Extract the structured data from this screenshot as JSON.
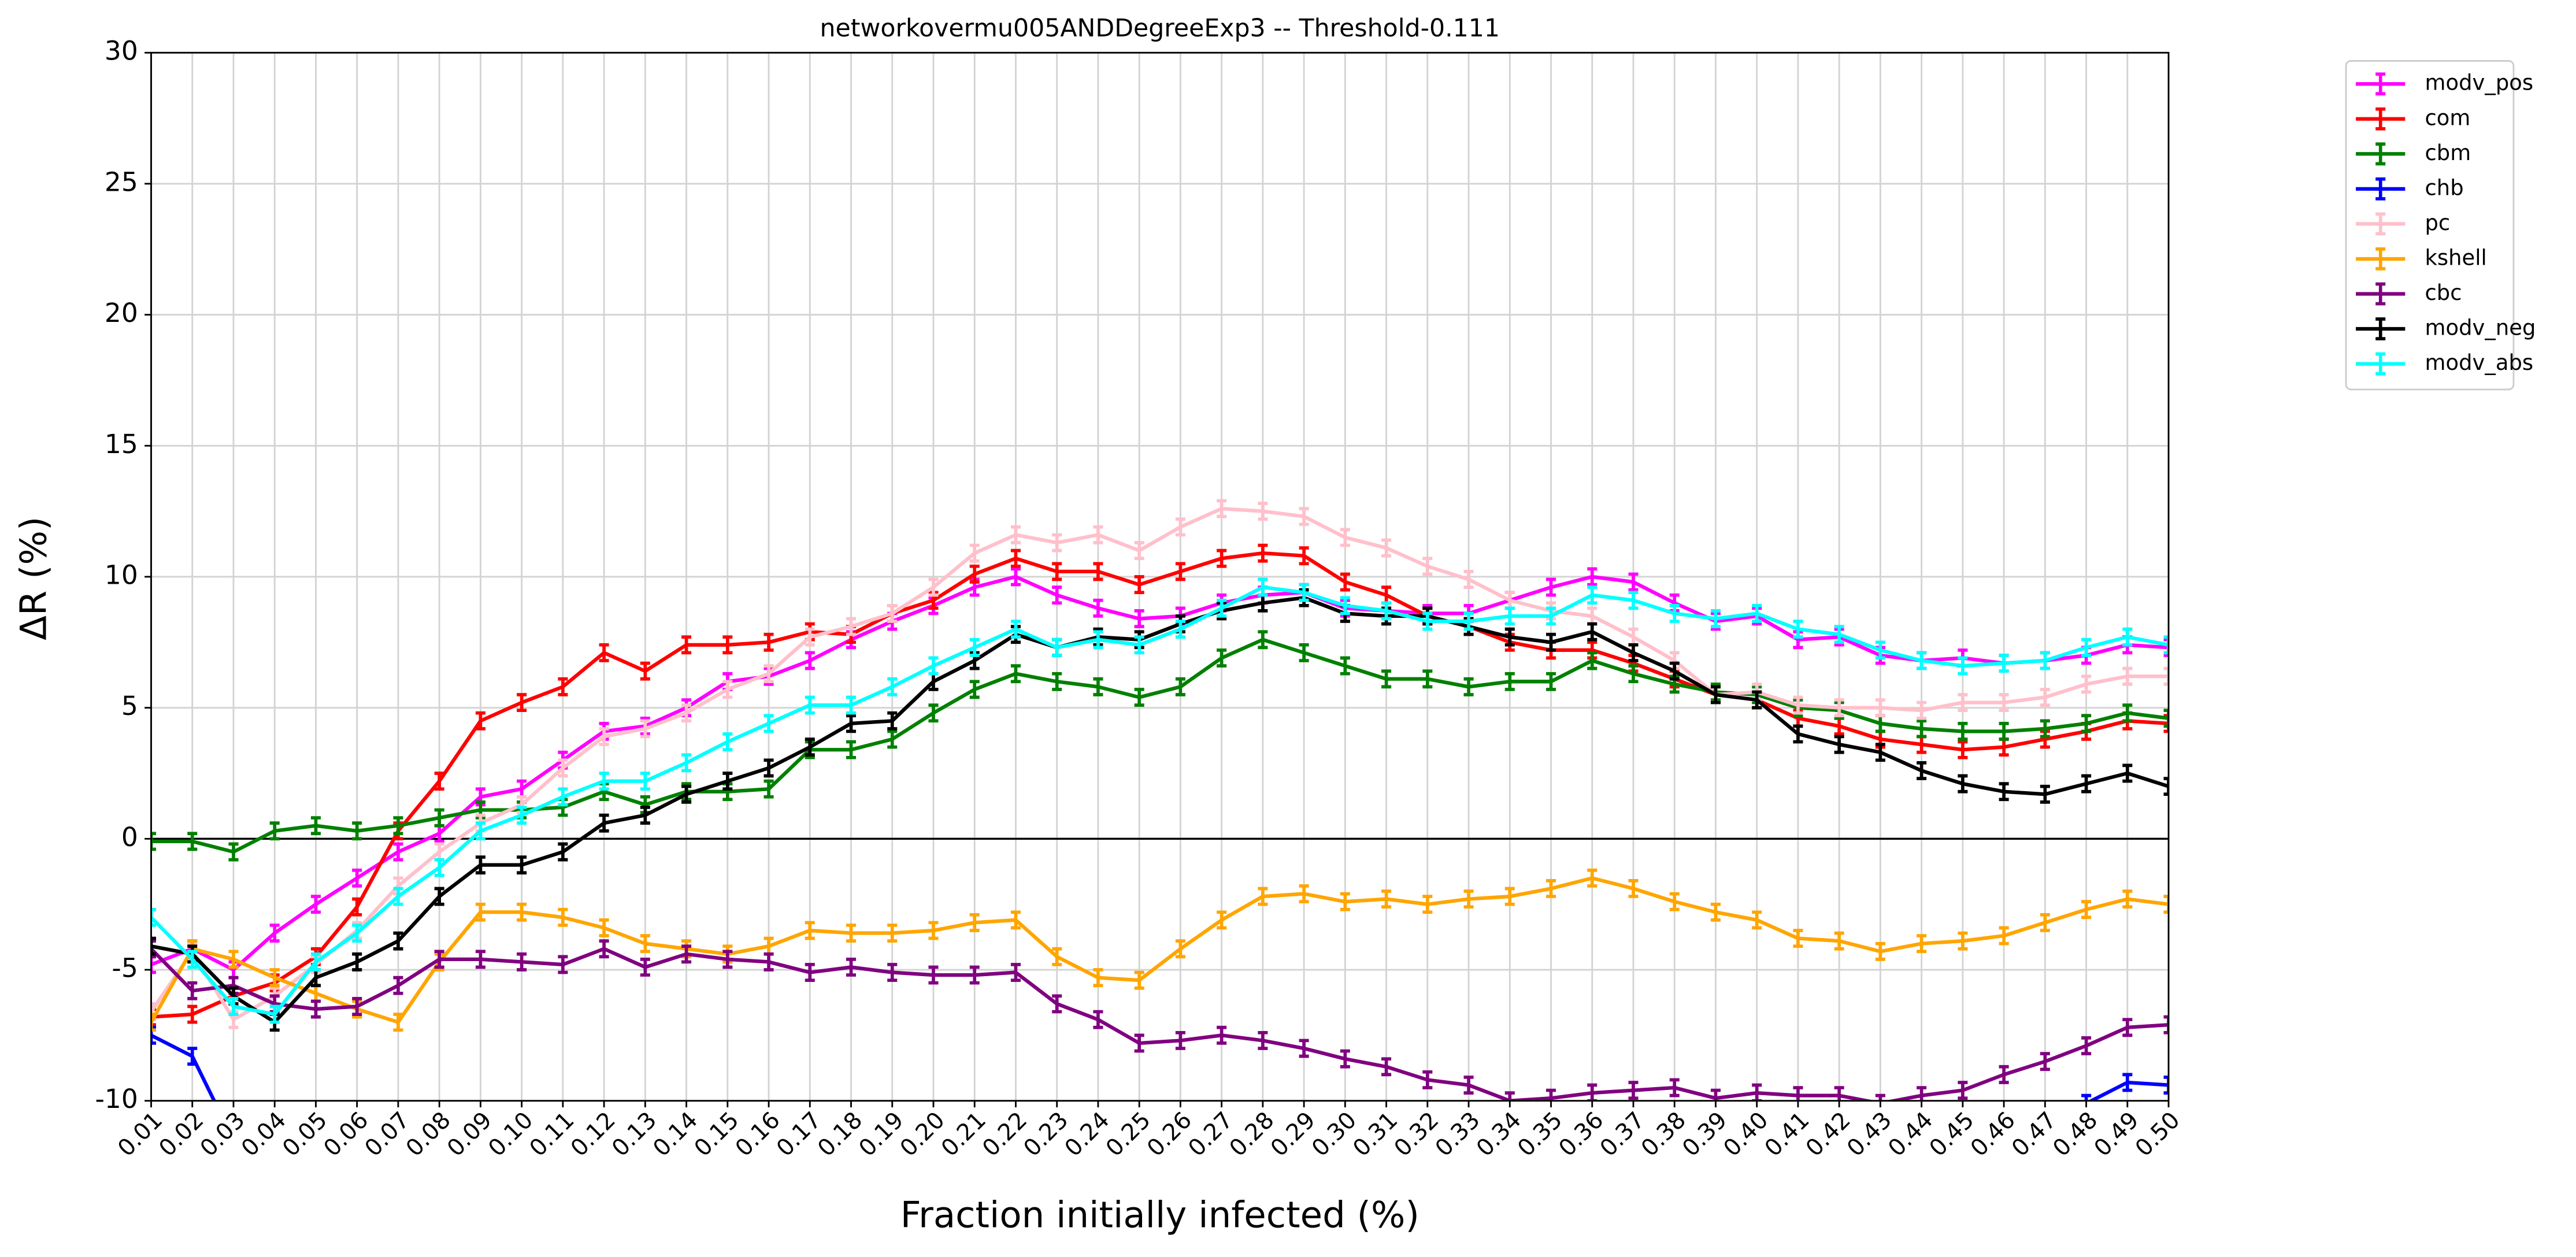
{
  "chart_data": {
    "type": "line",
    "title": "networkovermu005ANDDegreeExp3 -- Threshold-0.111",
    "x_label": "Fraction initially infected (%)",
    "y_label": "ΔR (%)",
    "categories": [
      "0.01",
      "0.02",
      "0.03",
      "0.04",
      "0.05",
      "0.06",
      "0.07",
      "0.08",
      "0.09",
      "0.10",
      "0.11",
      "0.12",
      "0.13",
      "0.14",
      "0.15",
      "0.16",
      "0.17",
      "0.18",
      "0.19",
      "0.20",
      "0.21",
      "0.22",
      "0.23",
      "0.24",
      "0.25",
      "0.26",
      "0.27",
      "0.28",
      "0.29",
      "0.30",
      "0.31",
      "0.32",
      "0.33",
      "0.34",
      "0.35",
      "0.36",
      "0.37",
      "0.38",
      "0.39",
      "0.40",
      "0.41",
      "0.42",
      "0.43",
      "0.44",
      "0.45",
      "0.46",
      "0.47",
      "0.48",
      "0.49",
      "0.50"
    ],
    "ylim": [
      -10,
      30
    ],
    "yticks": [
      -10,
      -5,
      0,
      5,
      10,
      15,
      20,
      25,
      30
    ],
    "grid": true,
    "hline": 0,
    "yerr": 0.3,
    "legend": "outside-right",
    "series": [
      {
        "name": "modv_pos",
        "color": "#ff00ff",
        "values": [
          -4.8,
          -4.2,
          -5.0,
          -3.6,
          -2.5,
          -1.5,
          -0.5,
          0.2,
          1.6,
          1.9,
          3.0,
          4.1,
          4.3,
          5.0,
          6.0,
          6.2,
          6.8,
          7.6,
          8.3,
          8.9,
          9.6,
          10.0,
          9.3,
          8.8,
          8.4,
          8.5,
          9.0,
          9.3,
          9.4,
          8.8,
          8.7,
          8.6,
          8.6,
          9.1,
          9.6,
          10.0,
          9.8,
          9.0,
          8.3,
          8.5,
          7.6,
          7.7,
          7.0,
          6.8,
          6.9,
          6.7,
          6.8,
          7.0,
          7.4,
          7.3
        ]
      },
      {
        "name": "com",
        "color": "#ff0000",
        "values": [
          -6.8,
          -6.7,
          -6.0,
          -5.5,
          -4.5,
          -2.6,
          0.3,
          2.2,
          4.5,
          5.2,
          5.8,
          7.1,
          6.4,
          7.4,
          7.4,
          7.5,
          7.9,
          7.8,
          8.6,
          9.1,
          10.1,
          10.7,
          10.2,
          10.2,
          9.7,
          10.2,
          10.7,
          10.9,
          10.8,
          9.8,
          9.3,
          8.5,
          8.1,
          7.5,
          7.2,
          7.2,
          6.7,
          6.1,
          5.5,
          5.3,
          4.6,
          4.3,
          3.8,
          3.6,
          3.4,
          3.5,
          3.8,
          4.1,
          4.5,
          4.4
        ]
      },
      {
        "name": "cbm",
        "color": "#008000",
        "values": [
          -0.1,
          -0.1,
          -0.5,
          0.3,
          0.5,
          0.3,
          0.5,
          0.8,
          1.1,
          1.1,
          1.2,
          1.8,
          1.3,
          1.8,
          1.8,
          1.9,
          3.4,
          3.4,
          3.8,
          4.8,
          5.7,
          6.3,
          6.0,
          5.8,
          5.4,
          5.8,
          6.9,
          7.6,
          7.1,
          6.6,
          6.1,
          6.1,
          5.8,
          6.0,
          6.0,
          6.8,
          6.3,
          5.9,
          5.6,
          5.5,
          5.0,
          4.9,
          4.4,
          4.2,
          4.1,
          4.1,
          4.2,
          4.4,
          4.8,
          4.6
        ]
      },
      {
        "name": "chb",
        "color": "#0000ff",
        "values": [
          -7.5,
          -8.3,
          -11.5,
          null,
          null,
          null,
          null,
          null,
          null,
          null,
          null,
          null,
          null,
          null,
          null,
          null,
          null,
          null,
          null,
          null,
          null,
          null,
          null,
          null,
          null,
          null,
          null,
          null,
          null,
          null,
          null,
          null,
          null,
          null,
          null,
          null,
          null,
          null,
          null,
          null,
          null,
          null,
          null,
          null,
          null,
          null,
          -11.0,
          -10.1,
          -9.3,
          -9.4
        ]
      },
      {
        "name": "pc",
        "color": "#ffc0cb",
        "values": [
          -6.6,
          -4.3,
          -6.9,
          -6.0,
          -4.8,
          -3.5,
          -1.8,
          -0.5,
          0.6,
          1.3,
          2.7,
          3.9,
          4.2,
          4.8,
          5.7,
          6.3,
          7.7,
          8.1,
          8.6,
          9.6,
          10.9,
          11.6,
          11.3,
          11.6,
          11.0,
          11.9,
          12.6,
          12.5,
          12.3,
          11.5,
          11.1,
          10.4,
          9.9,
          9.1,
          8.7,
          8.5,
          7.7,
          6.8,
          5.5,
          5.6,
          5.1,
          5.0,
          5.0,
          4.9,
          5.2,
          5.2,
          5.4,
          5.9,
          6.2,
          6.2
        ]
      },
      {
        "name": "kshell",
        "color": "#ffa500",
        "values": [
          -7.0,
          -4.2,
          -4.6,
          -5.3,
          -5.9,
          -6.5,
          -7.0,
          -4.7,
          -2.8,
          -2.8,
          -3.0,
          -3.4,
          -4.0,
          -4.2,
          -4.4,
          -4.1,
          -3.5,
          -3.6,
          -3.6,
          -3.5,
          -3.2,
          -3.1,
          -4.5,
          -5.3,
          -5.4,
          -4.2,
          -3.1,
          -2.2,
          -2.1,
          -2.4,
          -2.3,
          -2.5,
          -2.3,
          -2.2,
          -1.9,
          -1.5,
          -1.9,
          -2.4,
          -2.8,
          -3.1,
          -3.8,
          -3.9,
          -4.3,
          -4.0,
          -3.9,
          -3.7,
          -3.2,
          -2.7,
          -2.3,
          -2.5
        ]
      },
      {
        "name": "cbc",
        "color": "#800080",
        "values": [
          -4.2,
          -5.8,
          -5.6,
          -6.3,
          -6.5,
          -6.4,
          -5.6,
          -4.6,
          -4.6,
          -4.7,
          -4.8,
          -4.2,
          -4.9,
          -4.4,
          -4.6,
          -4.7,
          -5.1,
          -4.9,
          -5.1,
          -5.2,
          -5.2,
          -5.1,
          -6.3,
          -6.9,
          -7.8,
          -7.7,
          -7.5,
          -7.7,
          -8.0,
          -8.4,
          -8.7,
          -9.2,
          -9.4,
          -10.0,
          -9.9,
          -9.7,
          -9.6,
          -9.5,
          -9.9,
          -9.7,
          -9.8,
          -9.8,
          -10.1,
          -9.8,
          -9.6,
          -9.0,
          -8.5,
          -7.9,
          -7.2,
          -7.1
        ]
      },
      {
        "name": "modv_neg",
        "color": "#000000",
        "values": [
          -4.1,
          -4.4,
          -6.0,
          -7.0,
          -5.3,
          -4.7,
          -3.9,
          -2.2,
          -1.0,
          -1.0,
          -0.5,
          0.6,
          0.9,
          1.7,
          2.2,
          2.7,
          3.5,
          4.4,
          4.5,
          6.0,
          6.8,
          7.8,
          7.3,
          7.7,
          7.6,
          8.2,
          8.7,
          9.0,
          9.2,
          8.6,
          8.5,
          8.5,
          8.1,
          7.7,
          7.5,
          7.9,
          7.1,
          6.4,
          5.5,
          5.3,
          4.0,
          3.6,
          3.3,
          2.6,
          2.1,
          1.8,
          1.7,
          2.1,
          2.5,
          2.0
        ]
      },
      {
        "name": "modv_abs",
        "color": "#00ffff",
        "values": [
          -3.0,
          -4.6,
          -6.4,
          -6.7,
          -4.7,
          -3.6,
          -2.2,
          -1.1,
          0.3,
          0.9,
          1.6,
          2.2,
          2.2,
          2.9,
          3.7,
          4.4,
          5.1,
          5.1,
          5.8,
          6.6,
          7.3,
          8.0,
          7.3,
          7.6,
          7.4,
          8.0,
          8.8,
          9.6,
          9.4,
          8.9,
          8.7,
          8.3,
          8.3,
          8.5,
          8.5,
          9.3,
          9.1,
          8.6,
          8.4,
          8.6,
          8.0,
          7.8,
          7.2,
          6.8,
          6.6,
          6.7,
          6.8,
          7.3,
          7.7,
          7.4
        ]
      }
    ]
  }
}
